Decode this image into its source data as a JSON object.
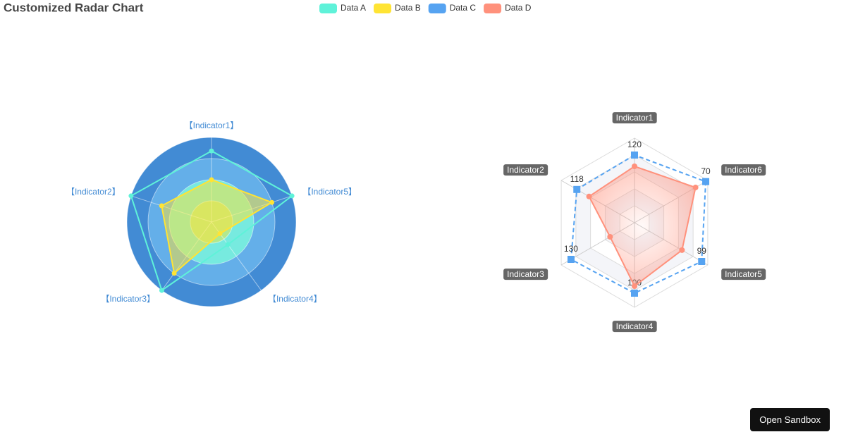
{
  "title": "Customized Radar Chart",
  "chart_data": [
    {
      "type": "radar",
      "shape": "circle",
      "indicators": [
        {
          "name": "【Indicator1】",
          "max": 100
        },
        {
          "name": "【Indicator2】",
          "max": 100
        },
        {
          "name": "【Indicator3】",
          "max": 100
        },
        {
          "name": "【Indicator4】",
          "max": 100
        },
        {
          "name": "【Indicator5】",
          "max": 100
        }
      ],
      "split_colors": [
        "#b2e88f",
        "#77eadf",
        "#64afe9",
        "#428bd4"
      ],
      "name_color": "#428bd4",
      "series": [
        {
          "name": "Data A",
          "color": "#5ff2d9",
          "values": [
            84,
            100,
            100,
            33,
            100
          ]
        },
        {
          "name": "Data B",
          "color": "#ffe434",
          "fill": true,
          "values": [
            50,
            62,
            75,
            17,
            75
          ]
        }
      ]
    },
    {
      "type": "radar",
      "shape": "polygon",
      "indicators": [
        {
          "name": "Indicator1",
          "max": 150
        },
        {
          "name": "Indicator2",
          "max": 150
        },
        {
          "name": "Indicator3",
          "max": 150
        },
        {
          "name": "Indicator4",
          "max": 120
        },
        {
          "name": "Indicator5",
          "max": 108
        },
        {
          "name": "Indicator6",
          "max": 72
        }
      ],
      "split_colors": [
        "#ffffff",
        "#f4f5f9"
      ],
      "name_color": "#666666",
      "series": [
        {
          "name": "Data C",
          "color": "#56a3f1",
          "dashed": true,
          "symbol": "square",
          "show_labels": true,
          "values": [
            120,
            118,
            130,
            100,
            99,
            70
          ]
        },
        {
          "name": "Data D",
          "color": "#ff917c",
          "fill": true,
          "values": [
            100,
            93,
            50,
            90,
            70,
            60
          ]
        }
      ]
    }
  ],
  "ui": {
    "button": "Open Sandbox"
  }
}
